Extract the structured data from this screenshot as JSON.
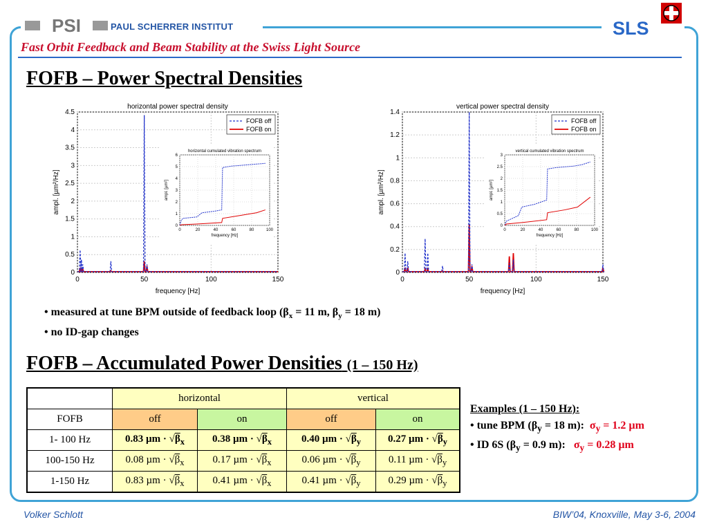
{
  "header": {
    "logo_text": "PSI",
    "institute": "PAUL SCHERRER INSTITUT",
    "sls": "SLS",
    "subtitle": "Fast Orbit Feedback and Beam Stability at the Swiss Light Source"
  },
  "section1": {
    "title": "FOFB – Power Spectral Densities"
  },
  "plots": [
    {
      "title": "horizontal power spectral density",
      "xlabel": "frequency [Hz]",
      "ylabel": "ampl. [µm²/Hz]",
      "xticks": [
        "0",
        "50",
        "100",
        "150"
      ],
      "yticks": [
        "0",
        "0.5",
        "1",
        "1.5",
        "2",
        "2.5",
        "3",
        "3.5",
        "4",
        "4.5"
      ],
      "legend": [
        "FOFB off",
        "FOFB on"
      ],
      "inset_title": "horizontal cumulated vibration spectrum",
      "inset_xlabel": "frequency [Hz]",
      "inset_ylabel": "ampl. [µm²]",
      "inset_xticks": [
        "0",
        "20",
        "40",
        "60",
        "80",
        "100"
      ],
      "inset_yticks": [
        "0",
        "1",
        "2",
        "3",
        "4",
        "5",
        "6"
      ]
    },
    {
      "title": "vertical power spectral density",
      "xlabel": "frequency [Hz]",
      "ylabel": "ampl. [µm²/Hz]",
      "xticks": [
        "0",
        "50",
        "100",
        "150"
      ],
      "yticks": [
        "0",
        "0.2",
        "0.4",
        "0.6",
        "0.8",
        "1",
        "1.2",
        "1.4"
      ],
      "legend": [
        "FOFB off",
        "FOFB on"
      ],
      "inset_title": "vertical cumulated vibration spectrum",
      "inset_xlabel": "frequency [Hz]",
      "inset_ylabel": "ampl. [µm²]",
      "inset_xticks": [
        "0",
        "20",
        "40",
        "60",
        "80",
        "100"
      ],
      "inset_yticks": [
        "0",
        "0.5",
        "1",
        "1.5",
        "2",
        "2.5",
        "3"
      ]
    }
  ],
  "colors": {
    "off": "#2233cc",
    "on": "#e00000",
    "frame": "#3fa3d6",
    "title": "#c8102e"
  },
  "bullets": {
    "b1_pre": "• measured at tune BPM outside of feedback loop (",
    "b1_bx": "β",
    "b1_x": "x",
    "b1_mid": " = 11 m, ",
    "b1_by": "β",
    "b1_y": "y",
    "b1_post": " = 18 m)",
    "b2": "• no ID-gap changes"
  },
  "section2": {
    "title": "FOFB – Accumulated Power Densities",
    "title_small": "(1 – 150 Hz)"
  },
  "table": {
    "head1": [
      "",
      "horizontal",
      "vertical"
    ],
    "head2": [
      "FOFB",
      "off",
      "on",
      "off",
      "on"
    ],
    "rows": [
      {
        "label": "1- 100 Hz",
        "cells": [
          [
            "0.83 µm · √",
            "β",
            "x"
          ],
          [
            "0.38 µm · √",
            "β",
            "x"
          ],
          [
            "0.40 µm · √",
            "β",
            "y"
          ],
          [
            "0.27 µm · √",
            "β",
            "y"
          ]
        ]
      },
      {
        "label": "100-150 Hz",
        "cells": [
          [
            "0.08 µm · √",
            "β",
            "x"
          ],
          [
            "0.17 µm · √",
            "β",
            "x"
          ],
          [
            "0.06 µm · √",
            "β",
            "y"
          ],
          [
            "0.11 µm · √",
            "β",
            "y"
          ]
        ]
      },
      {
        "label": "1-150 Hz",
        "cells": [
          [
            "0.83 µm · √",
            "β",
            "x"
          ],
          [
            "0.41 µm · √",
            "β",
            "x"
          ],
          [
            "0.41 µm · √",
            "β",
            "y"
          ],
          [
            "0.29 µm · √",
            "β",
            "y"
          ]
        ]
      }
    ]
  },
  "examples": {
    "title": "Examples (1 – 150 Hz):",
    "e1_pre": "• tune BPM (β",
    "e1_sub": "y",
    "e1_post": " = 18 m):",
    "e1_val_pre": "σ",
    "e1_val_sub": "y",
    "e1_val_post": " = 1.2 µm",
    "e2_pre": "• ID 6S (β",
    "e2_sub": "y",
    "e2_post": " = 0.9 m):",
    "e2_val_pre": "σ",
    "e2_val_sub": "y",
    "e2_val_post": " = 0.28 µm"
  },
  "footer": {
    "left": "Volker Schlott",
    "right": "BIW’04, Knoxville, May 3-6, 2004"
  }
}
